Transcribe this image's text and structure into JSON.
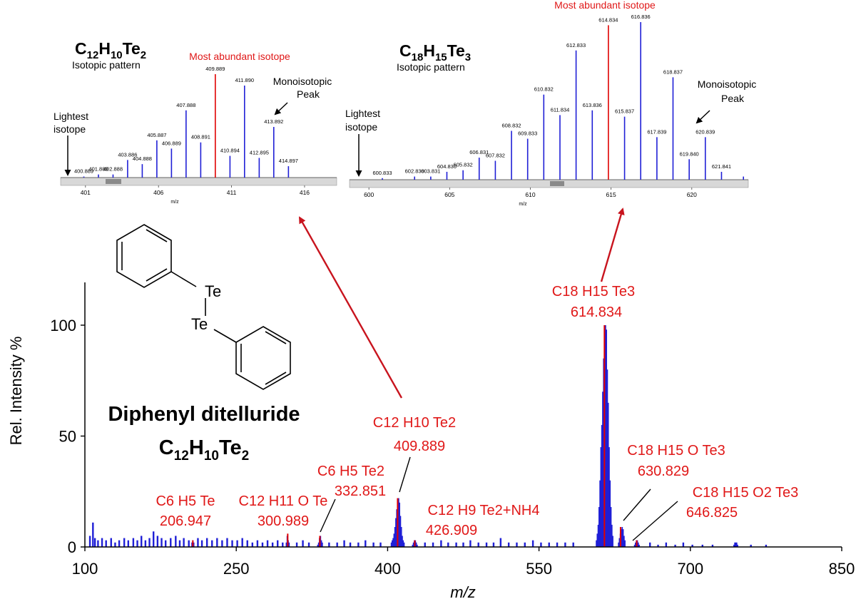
{
  "colors": {
    "peak_blue": "#1f1fd6",
    "peak_red": "#e00000",
    "annotation_red": "#e01818",
    "arrow_red": "#c8141e",
    "axis": "#000000"
  },
  "chart_data": [
    {
      "type": "bar",
      "name": "main-spectrum",
      "xlabel": "m/z",
      "ylabel": "Rel. Intensity %",
      "xlim": [
        100,
        850
      ],
      "ylim": [
        0,
        120
      ],
      "xticks": [
        100,
        250,
        400,
        550,
        700,
        850
      ],
      "yticks": [
        0,
        50,
        100
      ],
      "grid": false,
      "compound": {
        "name": "Diphenyl ditelluride",
        "formula_base": [
          "C",
          "H",
          "Te"
        ],
        "formula_sub": [
          "12",
          "10",
          "2"
        ],
        "atom_label_1": "Te",
        "atom_label_2": "Te"
      },
      "red_peaks": [
        {
          "x": 206.947,
          "y": 3
        },
        {
          "x": 300.989,
          "y": 6
        },
        {
          "x": 332.851,
          "y": 5
        },
        {
          "x": 409.889,
          "y": 22
        },
        {
          "x": 426.909,
          "y": 3
        },
        {
          "x": 614.834,
          "y": 100
        },
        {
          "x": 630.829,
          "y": 9
        },
        {
          "x": 646.825,
          "y": 3
        }
      ],
      "annotations": [
        {
          "line1": "C6 H5 Te",
          "line2": "206.947"
        },
        {
          "line1": "C12 H11 O Te",
          "line2": "300.989"
        },
        {
          "line1": "C6 H5 Te2",
          "line2": "332.851"
        },
        {
          "line1": "C12 H10 Te2",
          "line2": "409.889"
        },
        {
          "line1": "C12 H9 Te2+NH4",
          "line2": "426.909"
        },
        {
          "line1": "C18 H15 Te3",
          "line2": "614.834"
        },
        {
          "line1": "C18 H15 O Te3",
          "line2": "630.829"
        },
        {
          "line1": "C18 H15 O2 Te3",
          "line2": "646.825"
        }
      ],
      "clusters": [
        {
          "center": 410,
          "heights": [
            2,
            3,
            4,
            6,
            9,
            13,
            17,
            21,
            22,
            20,
            14,
            9,
            5,
            3,
            2
          ]
        },
        {
          "center": 615,
          "heights": [
            3,
            6,
            10,
            18,
            30,
            45,
            55,
            70,
            85,
            95,
            100,
            98,
            80,
            65,
            45,
            30,
            18,
            10,
            5
          ]
        },
        {
          "center": 632,
          "heights": [
            2,
            4,
            6,
            8,
            9,
            8,
            5,
            3
          ]
        },
        {
          "center": 647,
          "heights": [
            1,
            2,
            3,
            3,
            2,
            1
          ]
        },
        {
          "center": 427,
          "heights": [
            1,
            2,
            3,
            3,
            2,
            1
          ]
        },
        {
          "center": 333,
          "heights": [
            1,
            2,
            4,
            5,
            3,
            2
          ]
        },
        {
          "center": 301,
          "heights": [
            2,
            5,
            3,
            2
          ]
        },
        {
          "center": 207,
          "heights": [
            2,
            3,
            2
          ]
        },
        {
          "center": 745,
          "heights": [
            1,
            2,
            2,
            2,
            1
          ]
        }
      ],
      "noise_peaks": [
        {
          "x": 105,
          "y": 5
        },
        {
          "x": 108,
          "y": 11
        },
        {
          "x": 110,
          "y": 4
        },
        {
          "x": 113,
          "y": 3
        },
        {
          "x": 117,
          "y": 4
        },
        {
          "x": 121,
          "y": 3
        },
        {
          "x": 126,
          "y": 4
        },
        {
          "x": 130,
          "y": 2
        },
        {
          "x": 134,
          "y": 3
        },
        {
          "x": 139,
          "y": 4
        },
        {
          "x": 143,
          "y": 3
        },
        {
          "x": 148,
          "y": 4
        },
        {
          "x": 152,
          "y": 3
        },
        {
          "x": 156,
          "y": 5
        },
        {
          "x": 160,
          "y": 3
        },
        {
          "x": 164,
          "y": 4
        },
        {
          "x": 168,
          "y": 7
        },
        {
          "x": 172,
          "y": 5
        },
        {
          "x": 176,
          "y": 4
        },
        {
          "x": 180,
          "y": 3
        },
        {
          "x": 185,
          "y": 4
        },
        {
          "x": 190,
          "y": 5
        },
        {
          "x": 194,
          "y": 3
        },
        {
          "x": 198,
          "y": 4
        },
        {
          "x": 203,
          "y": 3
        },
        {
          "x": 212,
          "y": 4
        },
        {
          "x": 216,
          "y": 3
        },
        {
          "x": 221,
          "y": 4
        },
        {
          "x": 226,
          "y": 3
        },
        {
          "x": 231,
          "y": 4
        },
        {
          "x": 236,
          "y": 3
        },
        {
          "x": 241,
          "y": 4
        },
        {
          "x": 246,
          "y": 3
        },
        {
          "x": 251,
          "y": 3
        },
        {
          "x": 256,
          "y": 4
        },
        {
          "x": 261,
          "y": 3
        },
        {
          "x": 266,
          "y": 2
        },
        {
          "x": 271,
          "y": 3
        },
        {
          "x": 276,
          "y": 2
        },
        {
          "x": 281,
          "y": 3
        },
        {
          "x": 286,
          "y": 2
        },
        {
          "x": 291,
          "y": 3
        },
        {
          "x": 296,
          "y": 2
        },
        {
          "x": 310,
          "y": 2
        },
        {
          "x": 316,
          "y": 3
        },
        {
          "x": 322,
          "y": 2
        },
        {
          "x": 342,
          "y": 2
        },
        {
          "x": 350,
          "y": 2
        },
        {
          "x": 357,
          "y": 3
        },
        {
          "x": 363,
          "y": 2
        },
        {
          "x": 371,
          "y": 2
        },
        {
          "x": 378,
          "y": 3
        },
        {
          "x": 386,
          "y": 2
        },
        {
          "x": 393,
          "y": 2
        },
        {
          "x": 437,
          "y": 2
        },
        {
          "x": 445,
          "y": 2
        },
        {
          "x": 453,
          "y": 3
        },
        {
          "x": 460,
          "y": 2
        },
        {
          "x": 468,
          "y": 2
        },
        {
          "x": 475,
          "y": 2
        },
        {
          "x": 482,
          "y": 3
        },
        {
          "x": 490,
          "y": 2
        },
        {
          "x": 498,
          "y": 2
        },
        {
          "x": 505,
          "y": 2
        },
        {
          "x": 512,
          "y": 4
        },
        {
          "x": 520,
          "y": 2
        },
        {
          "x": 528,
          "y": 2
        },
        {
          "x": 536,
          "y": 2
        },
        {
          "x": 544,
          "y": 3
        },
        {
          "x": 552,
          "y": 2
        },
        {
          "x": 560,
          "y": 2
        },
        {
          "x": 568,
          "y": 2
        },
        {
          "x": 576,
          "y": 2
        },
        {
          "x": 584,
          "y": 2
        },
        {
          "x": 660,
          "y": 2
        },
        {
          "x": 668,
          "y": 1
        },
        {
          "x": 676,
          "y": 2
        },
        {
          "x": 685,
          "y": 1
        },
        {
          "x": 693,
          "y": 2
        },
        {
          "x": 702,
          "y": 1
        },
        {
          "x": 712,
          "y": 1
        },
        {
          "x": 722,
          "y": 1
        },
        {
          "x": 760,
          "y": 1
        },
        {
          "x": 775,
          "y": 1
        }
      ]
    },
    {
      "type": "bar",
      "name": "inset-c12h10te2",
      "title_base": [
        "C",
        "H",
        "Te"
      ],
      "title_sub": [
        "12",
        "10",
        "2"
      ],
      "subtitle": "Isotopic pattern",
      "xlabel": "m/z",
      "xlim": [
        399.3,
        418.2
      ],
      "xticks": [
        401,
        406,
        411,
        416
      ],
      "ylim": [
        0,
        100
      ],
      "peaks": [
        {
          "x": 400.889,
          "y": 1,
          "label": "400.889"
        },
        {
          "x": 401.889,
          "y": 3,
          "label": "401.889"
        },
        {
          "x": 402.888,
          "y": 3,
          "label": "402.888"
        },
        {
          "x": 403.886,
          "y": 17,
          "label": "403.886"
        },
        {
          "x": 404.888,
          "y": 13,
          "label": "404.888"
        },
        {
          "x": 405.887,
          "y": 36,
          "label": "405.887"
        },
        {
          "x": 406.889,
          "y": 28,
          "label": "406.889"
        },
        {
          "x": 407.888,
          "y": 65,
          "label": "407.888"
        },
        {
          "x": 408.891,
          "y": 34,
          "label": "408.891"
        },
        {
          "x": 409.889,
          "y": 100,
          "label": "409.889",
          "highlight": true
        },
        {
          "x": 410.894,
          "y": 21,
          "label": "410.894"
        },
        {
          "x": 411.89,
          "y": 89,
          "label": "411.890"
        },
        {
          "x": 412.895,
          "y": 19,
          "label": "412.895"
        },
        {
          "x": 413.892,
          "y": 49,
          "label": "413.892"
        },
        {
          "x": 414.897,
          "y": 11,
          "label": "414.897"
        }
      ],
      "annotations": {
        "most_abundant": "Most abundant isotope",
        "lightest_1": "Lightest",
        "lightest_2": "isotope",
        "mono_1": "Monoisotopic",
        "mono_2": "Peak"
      }
    },
    {
      "type": "bar",
      "name": "inset-c18h15te3",
      "title_base": [
        "C",
        "H",
        "Te"
      ],
      "title_sub": [
        "18",
        "15",
        "3"
      ],
      "subtitle": "Isotopic pattern",
      "xlabel": "m/z",
      "xlim": [
        598.8,
        623.5
      ],
      "xticks": [
        600,
        605,
        610,
        615,
        620
      ],
      "ylim": [
        0,
        100
      ],
      "peaks": [
        {
          "x": 600.833,
          "y": 1,
          "label": "600.833"
        },
        {
          "x": 602.83,
          "y": 2,
          "label": "602.830"
        },
        {
          "x": 603.831,
          "y": 2,
          "label": "603.831"
        },
        {
          "x": 604.83,
          "y": 5,
          "label": "604.830"
        },
        {
          "x": 605.832,
          "y": 6,
          "label": "605.832"
        },
        {
          "x": 606.831,
          "y": 14,
          "label": "606.831"
        },
        {
          "x": 607.832,
          "y": 12,
          "label": "607.832"
        },
        {
          "x": 608.832,
          "y": 31,
          "label": "608.832"
        },
        {
          "x": 609.833,
          "y": 26,
          "label": "609.833"
        },
        {
          "x": 610.832,
          "y": 54,
          "label": "610.832"
        },
        {
          "x": 611.834,
          "y": 41,
          "label": "611.834"
        },
        {
          "x": 612.833,
          "y": 82,
          "label": "612.833"
        },
        {
          "x": 613.836,
          "y": 44,
          "label": "613.836"
        },
        {
          "x": 614.834,
          "y": 98,
          "label": "614.834",
          "highlight": true
        },
        {
          "x": 615.837,
          "y": 40,
          "label": "615.837"
        },
        {
          "x": 616.836,
          "y": 100,
          "label": "616.836"
        },
        {
          "x": 617.839,
          "y": 27,
          "label": "617.839"
        },
        {
          "x": 618.837,
          "y": 65,
          "label": "618.837"
        },
        {
          "x": 619.84,
          "y": 13,
          "label": "619.840"
        },
        {
          "x": 620.839,
          "y": 27,
          "label": "620.839"
        },
        {
          "x": 621.841,
          "y": 5,
          "label": "621.841"
        },
        {
          "x": 623.2,
          "y": 2
        }
      ],
      "annotations": {
        "most_abundant": "Most abundant isotope",
        "lightest_1": "Lightest",
        "lightest_2": "isotope",
        "mono_1": "Monoisotopic",
        "mono_2": "Peak"
      }
    }
  ]
}
